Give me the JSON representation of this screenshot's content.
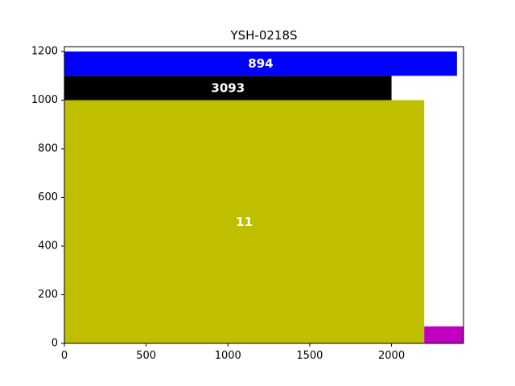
{
  "chart_data": {
    "type": "bar",
    "title": "YSH-0218S",
    "xlabel": "",
    "ylabel": "",
    "xlim": [
      0,
      2440
    ],
    "ylim": [
      0,
      1220
    ],
    "grid": false,
    "xticks": [
      0,
      500,
      1000,
      1500,
      2000
    ],
    "yticks": [
      0,
      200,
      400,
      600,
      800,
      1000,
      1200
    ],
    "rectangles": [
      {
        "x0": 0,
        "x1": 2200,
        "y0": 0,
        "y1": 1000,
        "color": "#bfbf00",
        "label": "11"
      },
      {
        "x0": 0,
        "x1": 2000,
        "y0": 1000,
        "y1": 1100,
        "color": "#000000",
        "label": "3093"
      },
      {
        "x0": 0,
        "x1": 2400,
        "y0": 1100,
        "y1": 1200,
        "color": "#0000ff",
        "label": "894"
      },
      {
        "x0": 2200,
        "x1": 2440,
        "y0": 0,
        "y1": 70,
        "color": "#bf00bf",
        "label": ""
      }
    ]
  }
}
